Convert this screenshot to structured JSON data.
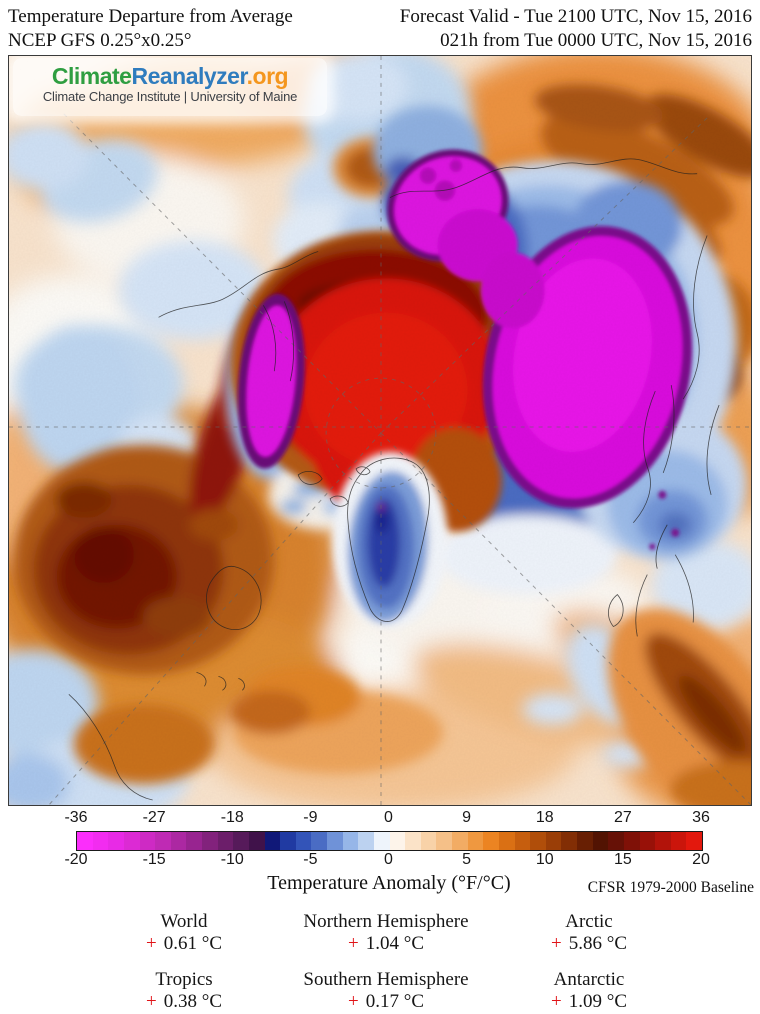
{
  "header": {
    "title_line1": "Temperature Departure from Average",
    "title_line2": "NCEP GFS 0.25°x0.25°",
    "forecast_line1": "Forecast Valid - Tue 2100 UTC, Nov 15, 2016",
    "forecast_line2": "021h from Tue 0000 UTC, Nov 15, 2016"
  },
  "logo": {
    "brand_climate": "Climate",
    "brand_reanalyzer": "Reanalyzer",
    "brand_org": ".org",
    "subtitle": "Climate Change Institute | University of Maine",
    "colors": {
      "climate": "#2f9e41",
      "reanalyzer": "#2f7cbe",
      "org": "#f4961e"
    }
  },
  "colorbar": {
    "title": "Temperature Anomaly (°F/°C)",
    "baseline_note": "CFSR 1979-2000 Baseline",
    "ticks_f": [
      "-36",
      "-27",
      "-18",
      "-9",
      "0",
      "9",
      "18",
      "27",
      "36"
    ],
    "ticks_c": [
      "-20",
      "-15",
      "-10",
      "-5",
      "0",
      "5",
      "10",
      "15",
      "20"
    ],
    "range_c": [
      -20,
      20
    ],
    "segments": [
      "#fb2efb",
      "#f22cf0",
      "#e82ae6",
      "#dc2ad4",
      "#ce2ac4",
      "#bf2ab4",
      "#ac28a2",
      "#982490",
      "#82227c",
      "#6c1e6a",
      "#561a5a",
      "#40124a",
      "#101878",
      "#203aa2",
      "#3354b8",
      "#4a6cc4",
      "#6f92d8",
      "#96b6e8",
      "#bcd2f0",
      "#eef4fb",
      "#fdf4ea",
      "#fbe3c8",
      "#f8d2a8",
      "#f5c088",
      "#f2ac64",
      "#ef9840",
      "#ec8422",
      "#da7014",
      "#c65e0e",
      "#b04e0a",
      "#9a3e07",
      "#822e05",
      "#681f03",
      "#521302",
      "#661106",
      "#7f1107",
      "#981108",
      "#b2130a",
      "#cb150b",
      "#e3180d"
    ]
  },
  "stats": {
    "plus": "+",
    "plus_color": "#e01418",
    "rows": [
      [
        {
          "label": "World",
          "value": "0.61 °C"
        },
        {
          "label": "Northern Hemisphere",
          "value": "1.04 °C"
        },
        {
          "label": "Arctic",
          "value": "5.86 °C"
        }
      ],
      [
        {
          "label": "Tropics",
          "value": "0.38 °C"
        },
        {
          "label": "Southern Hemisphere",
          "value": "0.17 °C"
        },
        {
          "label": "Antarctic",
          "value": "1.09 °C"
        }
      ]
    ]
  }
}
